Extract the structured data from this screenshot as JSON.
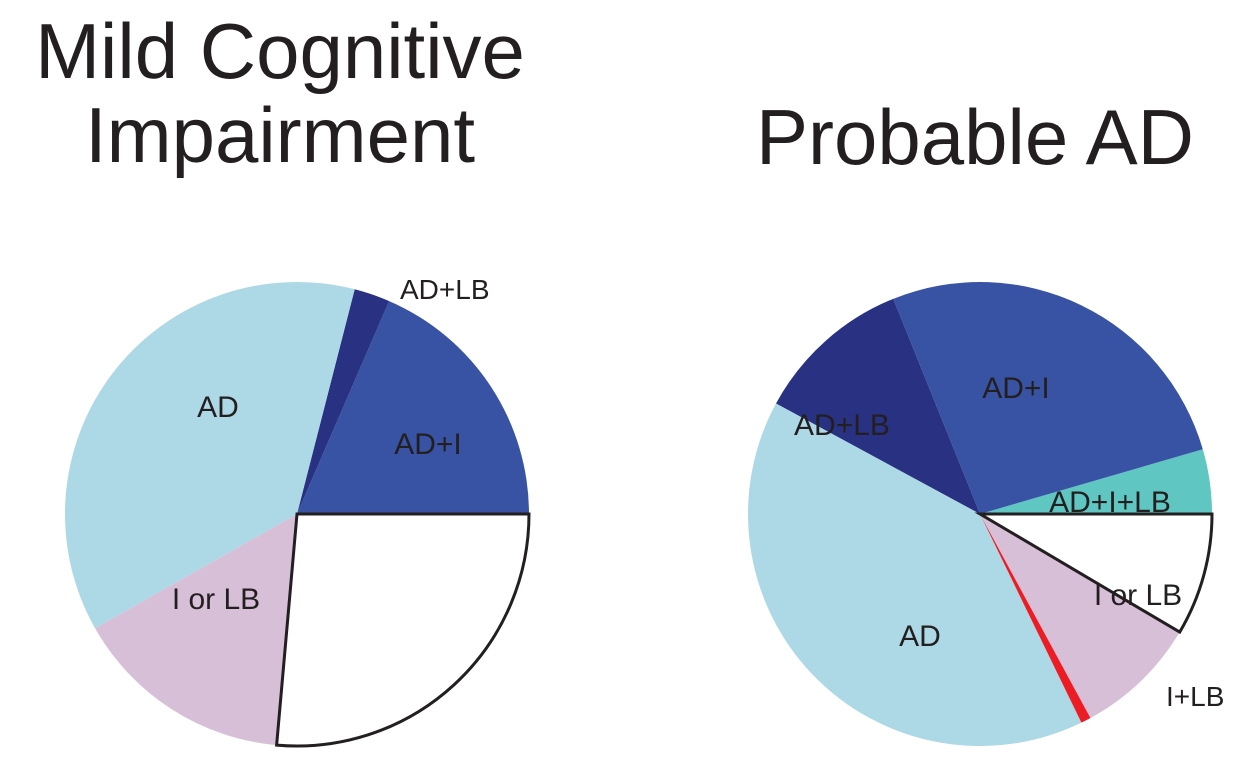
{
  "chart_data": [
    {
      "type": "pie",
      "title_lines": [
        "Mild Cognitive",
        "Impairment"
      ],
      "slices": [
        {
          "label": "AD+I",
          "value": 18.5,
          "color": "#3853a4"
        },
        {
          "label": "AD+LB",
          "value": 2.5,
          "color": "#283182"
        },
        {
          "label": "AD",
          "value": 37.2,
          "color": "#add8e6"
        },
        {
          "label": "I or LB",
          "value": 15.4,
          "color": "#d8bfd8"
        },
        {
          "label": "",
          "value": 26.4,
          "color": "#ffffff",
          "outlined": true
        }
      ]
    },
    {
      "type": "pie",
      "title_lines": [
        "Probable AD"
      ],
      "slices": [
        {
          "label": "AD+I+LB",
          "value": 4.5,
          "color": "#5fc6c2"
        },
        {
          "label": "AD+I",
          "value": 26.6,
          "color": "#3853a4"
        },
        {
          "label": "AD+LB",
          "value": 11.0,
          "color": "#283182"
        },
        {
          "label": "AD",
          "value": 40.1,
          "color": "#add8e6"
        },
        {
          "label": "I+LB",
          "value": 0.7,
          "color": "#ed1c24"
        },
        {
          "label": "I or LB",
          "value": 8.6,
          "color": "#d8bfd8"
        },
        {
          "label": "",
          "value": 8.5,
          "color": "#ffffff",
          "outlined": true
        }
      ]
    }
  ]
}
